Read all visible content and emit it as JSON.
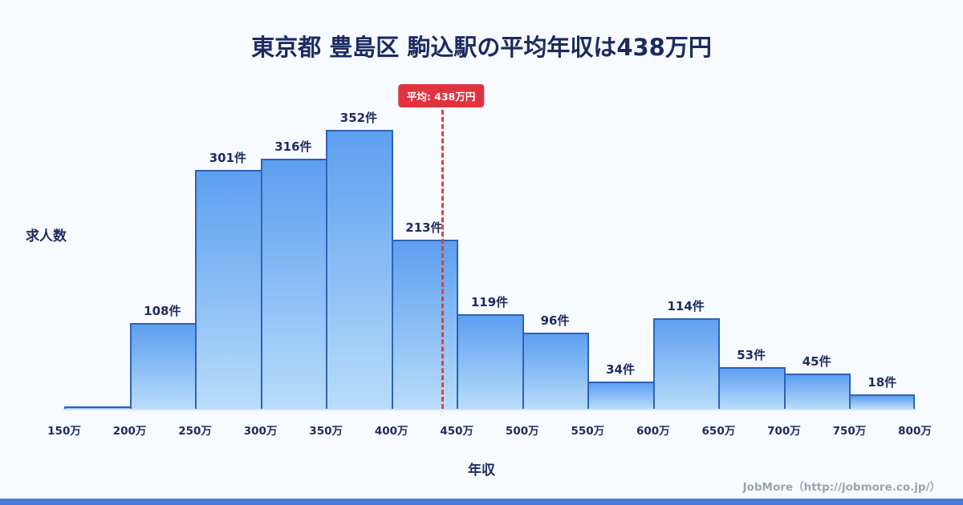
{
  "title": "東京都 豊島区 駒込駅の平均年収は438万円",
  "y_axis_label": "求人数",
  "x_axis_label": "年収",
  "average": {
    "label": "平均: 438万円",
    "value": 438
  },
  "footer": "JobMore（http://jobmore.co.jp/）",
  "colors": {
    "background": "#f7faff",
    "bar_fill_top": "#5d9ff0",
    "bar_fill_bottom": "#b9ddfa",
    "bar_border": "#2f62b5",
    "value_label_text": "#1e2b5e",
    "title_text": "#1c2b5e",
    "average_line": "#e04040",
    "badge_bg": "#e1333f",
    "badge_text": "#ffffff",
    "footer_text": "#9aa3b0",
    "bottom_strip": "#4a7bd2"
  },
  "chart_data": {
    "type": "bar",
    "title": "東京都 豊島区 駒込駅の平均年収は438万円",
    "xlabel": "年収",
    "ylabel": "求人数",
    "x_ticks": [
      "150万",
      "200万",
      "250万",
      "300万",
      "350万",
      "400万",
      "450万",
      "500万",
      "550万",
      "600万",
      "650万",
      "700万",
      "750万",
      "800万"
    ],
    "x_range": [
      150,
      800
    ],
    "bin_width": 50,
    "average_value": 438,
    "average_annotation": "平均: 438万円",
    "grid": false,
    "legend": false,
    "bins": [
      {
        "range": "150万-200万",
        "count": 3,
        "label": ""
      },
      {
        "range": "200万-250万",
        "count": 108,
        "label": "108件"
      },
      {
        "range": "250万-300万",
        "count": 301,
        "label": "301件"
      },
      {
        "range": "300万-350万",
        "count": 316,
        "label": "316件"
      },
      {
        "range": "350万-400万",
        "count": 352,
        "label": "352件"
      },
      {
        "range": "400万-450万",
        "count": 213,
        "label": "213件"
      },
      {
        "range": "450万-500万",
        "count": 119,
        "label": "119件"
      },
      {
        "range": "500万-550万",
        "count": 96,
        "label": "96件"
      },
      {
        "range": "550万-600万",
        "count": 34,
        "label": "34件"
      },
      {
        "range": "600万-650万",
        "count": 114,
        "label": "114件"
      },
      {
        "range": "650万-700万",
        "count": 53,
        "label": "53件"
      },
      {
        "range": "700万-750万",
        "count": 45,
        "label": "45件"
      },
      {
        "range": "750万-800万",
        "count": 18,
        "label": "18件"
      }
    ]
  }
}
